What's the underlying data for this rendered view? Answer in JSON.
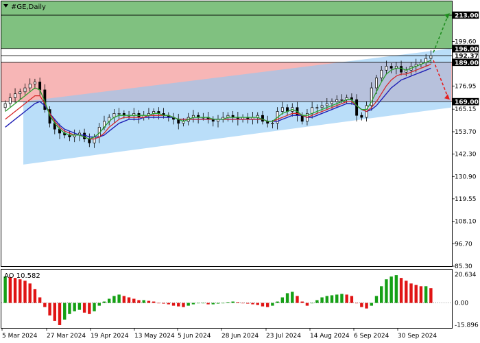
{
  "header": {
    "symbol_title": "#GE,Daily"
  },
  "chart_data": {
    "type": "candlestick",
    "title": "#GE,Daily",
    "price_axis": {
      "ylim": [
        85.3,
        220.0
      ],
      "ticks": [
        213.0,
        199.6,
        188.3,
        176.95,
        165.15,
        153.7,
        142.3,
        130.9,
        119.55,
        108.1,
        96.7,
        85.3
      ],
      "tick_labels": [
        "213.00",
        "199.60",
        "188.30",
        "176.95",
        "165.15",
        "153.70",
        "142.30",
        "130.90",
        "119.55",
        "108.10",
        "96.70",
        "85.30"
      ]
    },
    "x_axis": {
      "date_labels": [
        "5 Mar 2024",
        "27 Mar 2024",
        "19 Apr 2024",
        "13 May 2024",
        "5 Jun 2024",
        "28 Jun 2024",
        "23 Jul 2024",
        "14 Aug 2024",
        "6 Sep 2024",
        "30 Sep 2024"
      ]
    },
    "price_levels": [
      {
        "value": 213.0,
        "label": "213.00",
        "color": "#000000"
      },
      {
        "value": 196.0,
        "label": "196.00",
        "color": "#000000"
      },
      {
        "value": 192.37,
        "label": "192.37",
        "color": "#ffffff"
      },
      {
        "value": 189.0,
        "label": "189.00",
        "color": "#000000"
      },
      {
        "value": 169.0,
        "label": "169.00",
        "color": "#000000"
      }
    ],
    "zones": [
      {
        "name": "target-zone",
        "from": 196.0,
        "to": 220.0,
        "color": "#3ca03c"
      },
      {
        "name": "stop-zone",
        "from": 169.0,
        "to": 189.0,
        "color": "#f07a7a"
      }
    ],
    "channel": {
      "color": "#8cc8f5",
      "upper_start": 169.0,
      "upper_end": 196.0,
      "lower_start": 137.0,
      "lower_end": 166.0
    },
    "projections": [
      {
        "color": "#1e8c1e",
        "from": 194.0,
        "to": 214.0
      },
      {
        "color": "#e61e1e",
        "from": 190.0,
        "to": 170.0
      }
    ],
    "close_series": [
      168,
      171,
      173,
      174,
      176,
      178,
      179,
      175,
      165,
      158,
      155,
      153,
      152,
      151,
      152,
      153,
      150,
      148,
      151,
      156,
      159,
      161,
      163,
      163,
      162,
      162,
      163,
      161,
      162,
      163,
      164,
      163,
      162,
      161,
      160,
      158,
      159,
      161,
      162,
      161,
      161,
      160,
      159,
      160,
      161,
      162,
      161,
      160,
      161,
      160,
      161,
      162,
      159,
      158,
      158,
      164,
      166,
      164,
      166,
      162,
      159,
      163,
      166,
      166,
      167,
      168,
      169,
      170,
      170,
      171,
      170,
      162,
      161,
      167,
      176,
      181,
      185,
      187,
      186,
      187,
      184,
      185,
      187,
      188,
      189,
      191,
      192.37
    ],
    "ma_fast": [
      164,
      166,
      168,
      170,
      172,
      174,
      176,
      175,
      169,
      162,
      158,
      155,
      153,
      152,
      152,
      152,
      151,
      150,
      151,
      153,
      156,
      159,
      161,
      162,
      162,
      162,
      162,
      162,
      162,
      162,
      163,
      163,
      162,
      162,
      161,
      160,
      159,
      160,
      161,
      161,
      161,
      161,
      160,
      160,
      160,
      161,
      161,
      161,
      161,
      161,
      161,
      161,
      160,
      159,
      159,
      161,
      163,
      164,
      165,
      164,
      162,
      162,
      163,
      164,
      165,
      166,
      167,
      168,
      169,
      170,
      170,
      167,
      165,
      165,
      169,
      174,
      179,
      183,
      185,
      186,
      186,
      185,
      186,
      187,
      188,
      189,
      190
    ],
    "ma_mid": [
      160,
      162,
      164,
      166,
      168,
      170,
      172,
      172,
      168,
      163,
      159,
      156,
      154,
      153,
      152,
      152,
      151,
      150,
      150,
      151,
      153,
      156,
      158,
      160,
      161,
      161,
      161,
      161,
      161,
      162,
      162,
      162,
      162,
      162,
      161,
      160,
      160,
      160,
      160,
      160,
      160,
      160,
      160,
      160,
      160,
      160,
      160,
      160,
      160,
      160,
      160,
      160,
      160,
      159,
      159,
      160,
      161,
      162,
      163,
      163,
      162,
      161,
      162,
      163,
      164,
      165,
      166,
      167,
      168,
      169,
      169,
      167,
      165,
      164,
      166,
      169,
      173,
      177,
      180,
      182,
      183,
      183,
      184,
      185,
      186,
      187,
      188
    ],
    "ma_slow": [
      156,
      158,
      160,
      162,
      164,
      166,
      168,
      169,
      167,
      163,
      160,
      157,
      155,
      154,
      153,
      152,
      152,
      151,
      151,
      151,
      152,
      154,
      156,
      158,
      159,
      160,
      160,
      160,
      161,
      161,
      161,
      161,
      161,
      161,
      161,
      160,
      160,
      160,
      160,
      160,
      160,
      160,
      160,
      160,
      160,
      160,
      160,
      160,
      160,
      160,
      160,
      160,
      160,
      159,
      159,
      159,
      160,
      161,
      162,
      162,
      162,
      161,
      161,
      162,
      163,
      164,
      165,
      166,
      167,
      168,
      168,
      167,
      165,
      164,
      165,
      167,
      170,
      173,
      176,
      178,
      180,
      181,
      182,
      183,
      184,
      185,
      186
    ],
    "series_colors": {
      "ma_fast": "#2ca02c",
      "ma_mid": "#d62728",
      "ma_slow": "#1f1fb4"
    },
    "oscillator": {
      "label": "AO 10.582",
      "ylim": [
        -18.0,
        24.0
      ],
      "ticks": [
        20.634,
        0.0,
        -15.896
      ],
      "tick_labels": [
        "20.634",
        "0.00",
        "-15.896"
      ],
      "values": [
        19,
        18.5,
        18,
        17,
        16,
        14,
        10,
        4,
        -3,
        -9,
        -13,
        -16,
        -12,
        -8,
        -6,
        -5,
        -7,
        -8,
        -6,
        -2,
        1,
        3,
        5,
        6,
        5,
        4,
        3,
        2,
        2,
        1.5,
        1,
        0,
        -0.5,
        -1,
        -2,
        -2.5,
        -3,
        -2,
        -1,
        0,
        0,
        -1,
        -1,
        -0.5,
        0,
        0.5,
        1,
        0.5,
        0,
        -0.5,
        -1,
        -1.5,
        -2.5,
        -3,
        -2,
        1,
        4,
        7,
        8,
        5,
        1,
        -2,
        0,
        2,
        4,
        5,
        5.5,
        6,
        6.5,
        6,
        5,
        0,
        -3,
        -4,
        -2,
        5,
        12,
        17,
        19,
        20,
        18,
        16,
        14,
        13,
        12,
        12,
        10.582
      ]
    }
  }
}
